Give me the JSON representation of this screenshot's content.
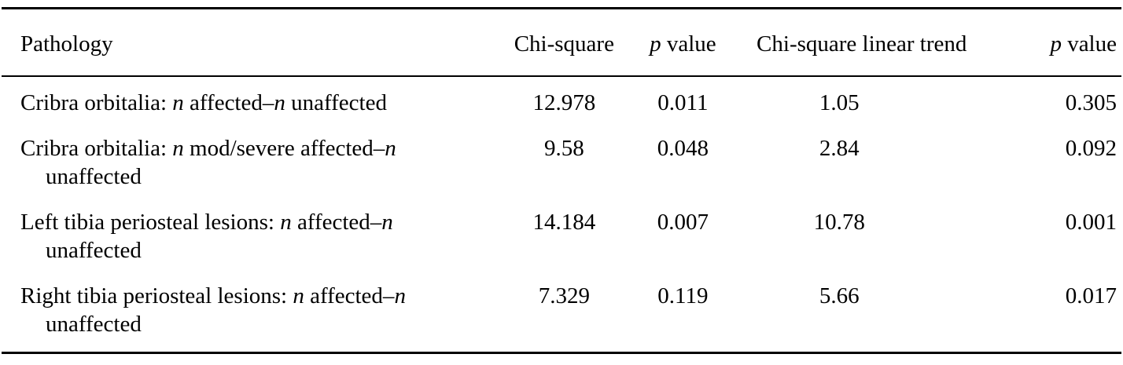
{
  "colors": {
    "text": "#000000",
    "background": "#ffffff",
    "rule": "#000000"
  },
  "table": {
    "columns": [
      {
        "id": "pathology",
        "label": [
          {
            "t": "Pathology"
          }
        ]
      },
      {
        "id": "chi_square",
        "label": [
          {
            "t": "Chi-square"
          }
        ]
      },
      {
        "id": "p_value_1",
        "label": [
          {
            "t": "p",
            "i": true
          },
          {
            "t": " value"
          }
        ]
      },
      {
        "id": "chi_square_linear_trend",
        "label": [
          {
            "t": "Chi-square linear trend"
          }
        ]
      },
      {
        "id": "p_value_2",
        "label": [
          {
            "t": "p",
            "i": true
          },
          {
            "t": " value"
          }
        ]
      }
    ],
    "rows": [
      {
        "pathology": [
          {
            "t": "Cribra orbitalia: "
          },
          {
            "t": "n",
            "i": true
          },
          {
            "t": " affected–"
          },
          {
            "t": "n",
            "i": true
          },
          {
            "t": " unaffected"
          }
        ],
        "chi_square": "12.978",
        "p_value_1": "0.011",
        "chi_square_linear_trend": "1.05",
        "p_value_2": "0.305"
      },
      {
        "pathology": [
          {
            "t": "Cribra orbitalia: "
          },
          {
            "t": "n",
            "i": true
          },
          {
            "t": " mod/severe affected–"
          },
          {
            "t": "n",
            "i": true
          },
          {
            "t": " unaffected"
          }
        ],
        "chi_square": "9.58",
        "p_value_1": "0.048",
        "chi_square_linear_trend": "2.84",
        "p_value_2": "0.092"
      },
      {
        "pathology": [
          {
            "t": "Left tibia periosteal lesions: "
          },
          {
            "t": "n",
            "i": true
          },
          {
            "t": " affected–"
          },
          {
            "t": "n",
            "i": true
          },
          {
            "t": " unaffected"
          }
        ],
        "chi_square": "14.184",
        "p_value_1": "0.007",
        "chi_square_linear_trend": "10.78",
        "p_value_2": "0.001"
      },
      {
        "pathology": [
          {
            "t": "Right tibia periosteal lesions: "
          },
          {
            "t": "n",
            "i": true
          },
          {
            "t": " affected–"
          },
          {
            "t": "n",
            "i": true
          },
          {
            "t": " unaffected"
          }
        ],
        "chi_square": "7.329",
        "p_value_1": "0.119",
        "chi_square_linear_trend": "5.66",
        "p_value_2": "0.017"
      }
    ]
  }
}
